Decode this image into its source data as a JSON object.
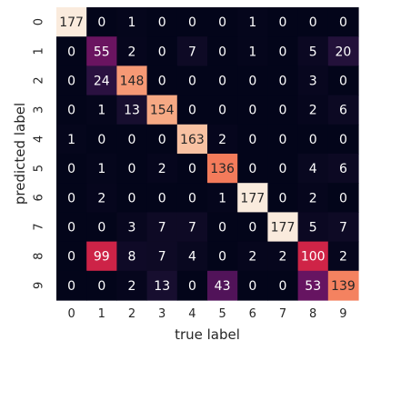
{
  "chart_data": {
    "type": "heatmap",
    "title": "",
    "xlabel": "true label",
    "ylabel": "predicted label",
    "x_categories": [
      "0",
      "1",
      "2",
      "3",
      "4",
      "5",
      "6",
      "7",
      "8",
      "9"
    ],
    "y_categories": [
      "0",
      "1",
      "2",
      "3",
      "4",
      "5",
      "6",
      "7",
      "8",
      "9"
    ],
    "colormap": "rocket",
    "color_range": [
      0,
      177
    ],
    "values": [
      [
        177,
        0,
        1,
        0,
        0,
        0,
        1,
        0,
        0,
        0
      ],
      [
        0,
        55,
        2,
        0,
        7,
        0,
        1,
        0,
        5,
        20
      ],
      [
        0,
        24,
        148,
        0,
        0,
        0,
        0,
        0,
        3,
        0
      ],
      [
        0,
        1,
        13,
        154,
        0,
        0,
        0,
        0,
        2,
        6
      ],
      [
        1,
        0,
        0,
        0,
        163,
        2,
        0,
        0,
        0,
        0
      ],
      [
        0,
        1,
        0,
        2,
        0,
        136,
        0,
        0,
        4,
        6
      ],
      [
        0,
        2,
        0,
        0,
        0,
        1,
        177,
        0,
        2,
        0
      ],
      [
        0,
        0,
        3,
        7,
        7,
        0,
        0,
        177,
        5,
        7
      ],
      [
        0,
        99,
        8,
        7,
        4,
        0,
        2,
        2,
        100,
        2
      ],
      [
        0,
        0,
        2,
        13,
        0,
        43,
        0,
        0,
        53,
        139
      ]
    ],
    "colorbar": false
  }
}
